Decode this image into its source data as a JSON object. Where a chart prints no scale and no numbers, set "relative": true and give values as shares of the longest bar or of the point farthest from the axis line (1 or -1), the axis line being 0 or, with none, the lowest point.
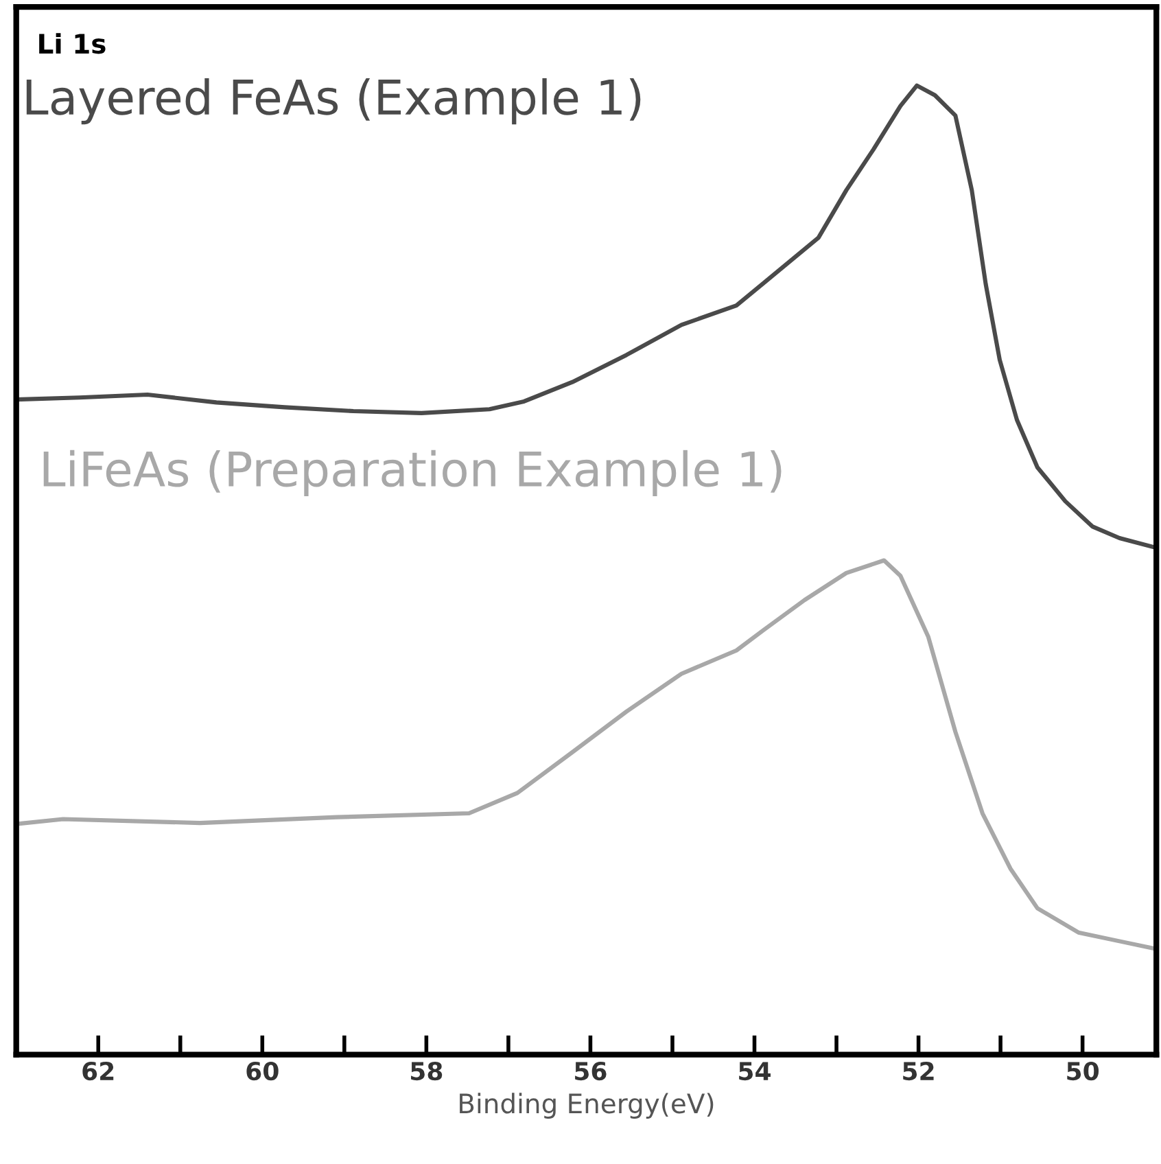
{
  "chart_data": {
    "type": "line",
    "relative": true,
    "xlabel": "Binding Energy(eV)",
    "annotations": [
      "Li 1s"
    ],
    "xlim": [
      63.0,
      49.1
    ],
    "xticks": [
      62,
      {
        "value": 61,
        "label": null
      },
      60,
      {
        "value": 59,
        "label": null
      },
      58,
      {
        "value": 57,
        "label": null
      },
      56,
      {
        "value": 55,
        "label": null
      },
      54,
      {
        "value": 53,
        "label": null
      },
      52,
      {
        "value": 51,
        "label": null
      },
      50
    ],
    "grid": false,
    "legend": false,
    "line_style": "solid",
    "marker": "none",
    "series": [
      {
        "name": "Layered FeAs (Example 1)",
        "color": "#4a4a4a",
        "x": [
          63.0,
          62.23,
          61.4,
          60.56,
          59.73,
          58.89,
          58.06,
          57.23,
          56.81,
          56.22,
          55.56,
          54.89,
          54.22,
          53.89,
          53.22,
          52.88,
          52.55,
          52.22,
          52.02,
          51.8,
          51.55,
          51.35,
          51.18,
          51.01,
          50.8,
          50.55,
          50.21,
          49.88,
          49.55,
          49.1
        ],
        "values": [
          0.676,
          0.678,
          0.681,
          0.673,
          0.668,
          0.664,
          0.662,
          0.666,
          0.674,
          0.694,
          0.722,
          0.753,
          0.773,
          0.796,
          0.843,
          0.892,
          0.934,
          0.979,
          1.0,
          0.99,
          0.969,
          0.892,
          0.795,
          0.717,
          0.655,
          0.606,
          0.571,
          0.545,
          0.533,
          0.523
        ]
      },
      {
        "name": "LiFeAs (Preparation Example 1)",
        "color": "#a8a8a8",
        "x": [
          63.0,
          62.43,
          60.76,
          59.09,
          57.48,
          56.89,
          56.22,
          55.56,
          54.89,
          54.22,
          53.89,
          53.39,
          52.88,
          52.42,
          52.22,
          51.88,
          51.55,
          51.22,
          50.88,
          50.55,
          50.05,
          49.55,
          49.1
        ],
        "values": [
          0.238,
          0.243,
          0.239,
          0.245,
          0.249,
          0.27,
          0.312,
          0.354,
          0.393,
          0.417,
          0.438,
          0.469,
          0.497,
          0.51,
          0.494,
          0.431,
          0.333,
          0.249,
          0.192,
          0.151,
          0.126,
          0.117,
          0.109
        ]
      }
    ]
  }
}
